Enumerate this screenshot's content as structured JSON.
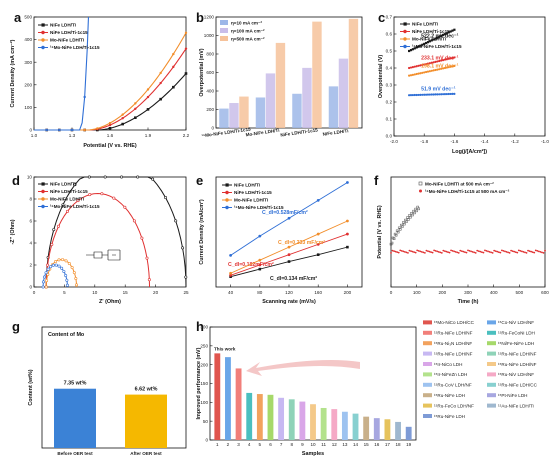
{
  "panels": {
    "a": {
      "label": "a",
      "type": "line",
      "xlabel": "Potential (V vs. RHE)",
      "ylabel": "Current Density (mA cm⁻²)",
      "xlim": [
        1.0,
        2.2
      ],
      "ylim": [
        0,
        500
      ],
      "xticks": [
        "1.0",
        "1.3",
        "1.6",
        "1.9",
        "2.2"
      ],
      "yticks": [
        "0",
        "100",
        "200",
        "300",
        "400",
        "500"
      ],
      "series": [
        {
          "name": "NiFe LDH/Ti",
          "color": "#1a1a1a",
          "onset": 1.5,
          "y_end": 250,
          "marker": "square"
        },
        {
          "name": "NiFe LDH/Ti-1c15",
          "color": "#e03131",
          "onset": 1.44,
          "y_end": 360,
          "marker": "circle"
        },
        {
          "name": "Mo-NiFe LDH/Ti",
          "color": "#f28e2b",
          "onset": 1.42,
          "y_end": 430,
          "marker": "circle"
        },
        {
          "name": "¹⁵Mo-NiFe LDH/Ti-1c15",
          "color": "#2f6fd6",
          "onset": 1.36,
          "y_end": 500,
          "marker": "circle"
        }
      ]
    },
    "b": {
      "label": "b",
      "type": "bar",
      "ylabel": "Overpotential (mV)",
      "ylim": [
        0,
        1200
      ],
      "yticks": [
        "0",
        "200",
        "400",
        "600",
        "800",
        "1000",
        "1200"
      ],
      "categories": [
        "¹⁵Mo-NiFe LDH/Ti-1c15",
        "Mo-NiFe LDH/Ti",
        "NiFe LDH/Ti-1c15",
        "NiFe LDH/Ti"
      ],
      "series": [
        {
          "name": "η=10 mA cm⁻²",
          "color": "#9db7e8",
          "values": [
            210,
            330,
            370,
            450
          ]
        },
        {
          "name": "η=100 mA cm⁻²",
          "color": "#c9bde9",
          "values": [
            270,
            590,
            650,
            750
          ]
        },
        {
          "name": "η=500 mA cm⁻²",
          "color": "#f6c29a",
          "values": [
            340,
            920,
            1150,
            1180
          ]
        }
      ]
    },
    "c": {
      "label": "c",
      "type": "scatter",
      "xlabel": "Log(j/[A/cm²])",
      "ylabel": "Overpotential (V)",
      "xlim": [
        -2.0,
        -1.0
      ],
      "ylim": [
        0.0,
        0.7
      ],
      "xticks": [
        "-2.0",
        "-1.8",
        "-1.6",
        "-1.4",
        "-1.2",
        "-1.0"
      ],
      "yticks": [
        "0.0",
        "0.1",
        "0.2",
        "0.3",
        "0.4",
        "0.5",
        "0.6",
        "0.7"
      ],
      "series": [
        {
          "name": "NiFe LDH/Ti",
          "color": "#1a1a1a",
          "y0": 0.5,
          "y1": 0.625,
          "tafel": "522.2 mV dec⁻¹"
        },
        {
          "name": "NiFe LDH/Ti-1c15",
          "color": "#e03131",
          "y0": 0.4,
          "y1": 0.462,
          "tafel": "233.1 mV dec⁻¹"
        },
        {
          "name": "Mo-NiFe LDH/Ti",
          "color": "#f28e2b",
          "y0": 0.355,
          "y1": 0.412,
          "tafel": "198.1 mV dec⁻¹"
        },
        {
          "name": "¹⁵Mo-NiFe LDH/Ti-1c15",
          "color": "#2f6fd6",
          "y0": 0.24,
          "y1": 0.248,
          "tafel": "51.9 mV dec⁻¹"
        }
      ],
      "x_range": [
        -1.9,
        -1.6
      ]
    },
    "d": {
      "label": "d",
      "type": "scatter",
      "xlabel": "Z' (Ohm)",
      "ylabel": "-Z'' (Ohm)",
      "xlim": [
        0,
        25
      ],
      "ylim": [
        0,
        10
      ],
      "xticks": [
        "0",
        "5",
        "10",
        "15",
        "20",
        "25"
      ],
      "yticks": [
        "0",
        "2",
        "4",
        "6",
        "8",
        "10"
      ],
      "series": [
        {
          "name": "NiFe LDH/Ti",
          "color": "#1a1a1a",
          "x_start": 2.0,
          "x_end": 25.0
        },
        {
          "name": "NiFe LDH/Ti-1c15",
          "color": "#e03131",
          "x_start": 2.0,
          "x_end": 19.0
        },
        {
          "name": "Mo-NiFe LDH/Ti",
          "color": "#f28e2b",
          "x_start": 2.0,
          "x_end": 7.0
        },
        {
          "name": "¹⁵Mo-NiFe LDH/Ti-1c15",
          "color": "#2f6fd6",
          "x_start": 1.5,
          "x_end": 5.5
        }
      ]
    },
    "e": {
      "label": "e",
      "type": "line",
      "xlabel": "Scanning rate (mV/s)",
      "ylabel": "Current Density (mA/cm²)",
      "categories": [
        "40",
        "80",
        "120",
        "160",
        "200"
      ],
      "xlim": [
        20,
        220
      ],
      "ylim": [
        0,
        80
      ],
      "series": [
        {
          "name": "NiFe LDH/Ti",
          "color": "#1a1a1a",
          "values": [
            7.5,
            13.0,
            18.5,
            23.5,
            29.0
          ],
          "cdl": "C_dl=0.134 mF/cm²"
        },
        {
          "name": "NiFe LDH/Ti-1c15",
          "color": "#e03131",
          "values": [
            8.5,
            16.0,
            23.5,
            31.0,
            38.5
          ],
          "cdl": "C_dl=0.182mF/cm²"
        },
        {
          "name": "Mo-NiFe LDH/Ti",
          "color": "#f28e2b",
          "values": [
            10.0,
            19.5,
            29.0,
            38.5,
            48.0
          ],
          "cdl": "C_dl=0.233 mF/cm²"
        },
        {
          "name": "¹⁵Mo-NiFe LDH/Ti-1c15",
          "color": "#2f6fd6",
          "values": [
            23.0,
            37.0,
            50.0,
            63.0,
            76.0
          ],
          "cdl": "C_dl=0.528mF/cm²"
        }
      ]
    },
    "f": {
      "label": "f",
      "type": "line",
      "xlabel": "Time (h)",
      "ylabel": "Potential (V vs. RHE)",
      "xlim": [
        0,
        600
      ],
      "xticks": [
        "0",
        "100",
        "200",
        "300",
        "400",
        "500",
        "600"
      ],
      "ylim": [
        1.0,
        3.0
      ],
      "series": [
        {
          "name": "Mo-NiFe LDH/Ti at 500 mA cm⁻²",
          "color": "#555555",
          "t_end": 110
        },
        {
          "name": "¹⁵Mo-NiFe LDH/Ti-1c15 at 500 mA cm⁻²",
          "color": "#e03131",
          "t_end": 600
        }
      ]
    },
    "g": {
      "label": "g",
      "type": "bar",
      "title": "Content of Mo",
      "ylabel": "Content (wt%)",
      "categories": [
        "Before OER test",
        "After OER test"
      ],
      "values": [
        7.35,
        6.62
      ],
      "value_labels": [
        "7.35 wt%",
        "6.62 wt%"
      ],
      "colors": [
        "#3b82d6",
        "#f5b800"
      ],
      "ylim": [
        0,
        15
      ]
    },
    "h": {
      "label": "h",
      "type": "bar",
      "xlabel": "Samples",
      "ylabel": "Improved performance (mV)",
      "ylim": [
        0,
        300
      ],
      "yticks": [
        "0",
        "50",
        "100",
        "150",
        "200",
        "250",
        "300"
      ],
      "categories": [
        "1",
        "2",
        "3",
        "4",
        "5",
        "6",
        "7",
        "8",
        "9",
        "10",
        "11",
        "12",
        "13",
        "14",
        "15",
        "16",
        "17",
        "18",
        "19"
      ],
      "values": [
        230,
        220,
        190,
        125,
        122,
        120,
        112,
        108,
        102,
        95,
        85,
        82,
        75,
        70,
        62,
        58,
        55,
        48,
        35
      ],
      "annotation": "This work",
      "legend": [
        {
          "name": "¹⁵Mo-NiCo LDH/CC",
          "color": "#e0554e"
        },
        {
          "name": "¹⁵Co-NiV LDH/NF",
          "color": "#6aa6e8"
        },
        {
          "name": "¹⁵Ru-NiFe LDH/NF",
          "color": "#f17f7a"
        },
        {
          "name": "¹⁵Ru-FeCoNi LDH",
          "color": "#4bbfbf"
        },
        {
          "name": "¹⁵Ru-Ni₃N LDH/NF",
          "color": "#f2a25e"
        },
        {
          "name": "¹⁵Ni/Fe-NiFe LDH",
          "color": "#a6d96a"
        },
        {
          "name": "¹⁵Ru-NiFe LDH/NF",
          "color": "#c7b8f2"
        },
        {
          "name": "¹⁵Ru-NiFe LDH/NF",
          "color": "#8fd3b8"
        },
        {
          "name": "¹⁵Ir-NiCo LDH",
          "color": "#d9a6e8"
        },
        {
          "name": "¹⁵Ru-NiFe LDH/NF",
          "color": "#f4c989"
        },
        {
          "name": "¹⁵Ir-NiFeZn LDH",
          "color": "#b3e28c"
        },
        {
          "name": "¹⁵Ru-NiV LDH/NF",
          "color": "#f5a9c6"
        },
        {
          "name": "¹⁵Ru-CoV LDH/NF",
          "color": "#9ec3f0"
        },
        {
          "name": "¹⁵Ru-NiFe LDH/CC",
          "color": "#88d0d0"
        },
        {
          "name": "¹⁵Ru-NiFe LDH",
          "color": "#c9b08a"
        },
        {
          "name": "¹⁵Pt-NiFe LDH",
          "color": "#a7a7e0"
        },
        {
          "name": "¹⁵Ru-FeCo LDH/NF",
          "color": "#e6c35c"
        },
        {
          "name": "¹⁵Au-NiFe LDH/Ti",
          "color": "#9fb8cf"
        },
        {
          "name": "¹⁵Ru-NiFe LDH",
          "color": "#7e9bd6"
        }
      ]
    }
  }
}
